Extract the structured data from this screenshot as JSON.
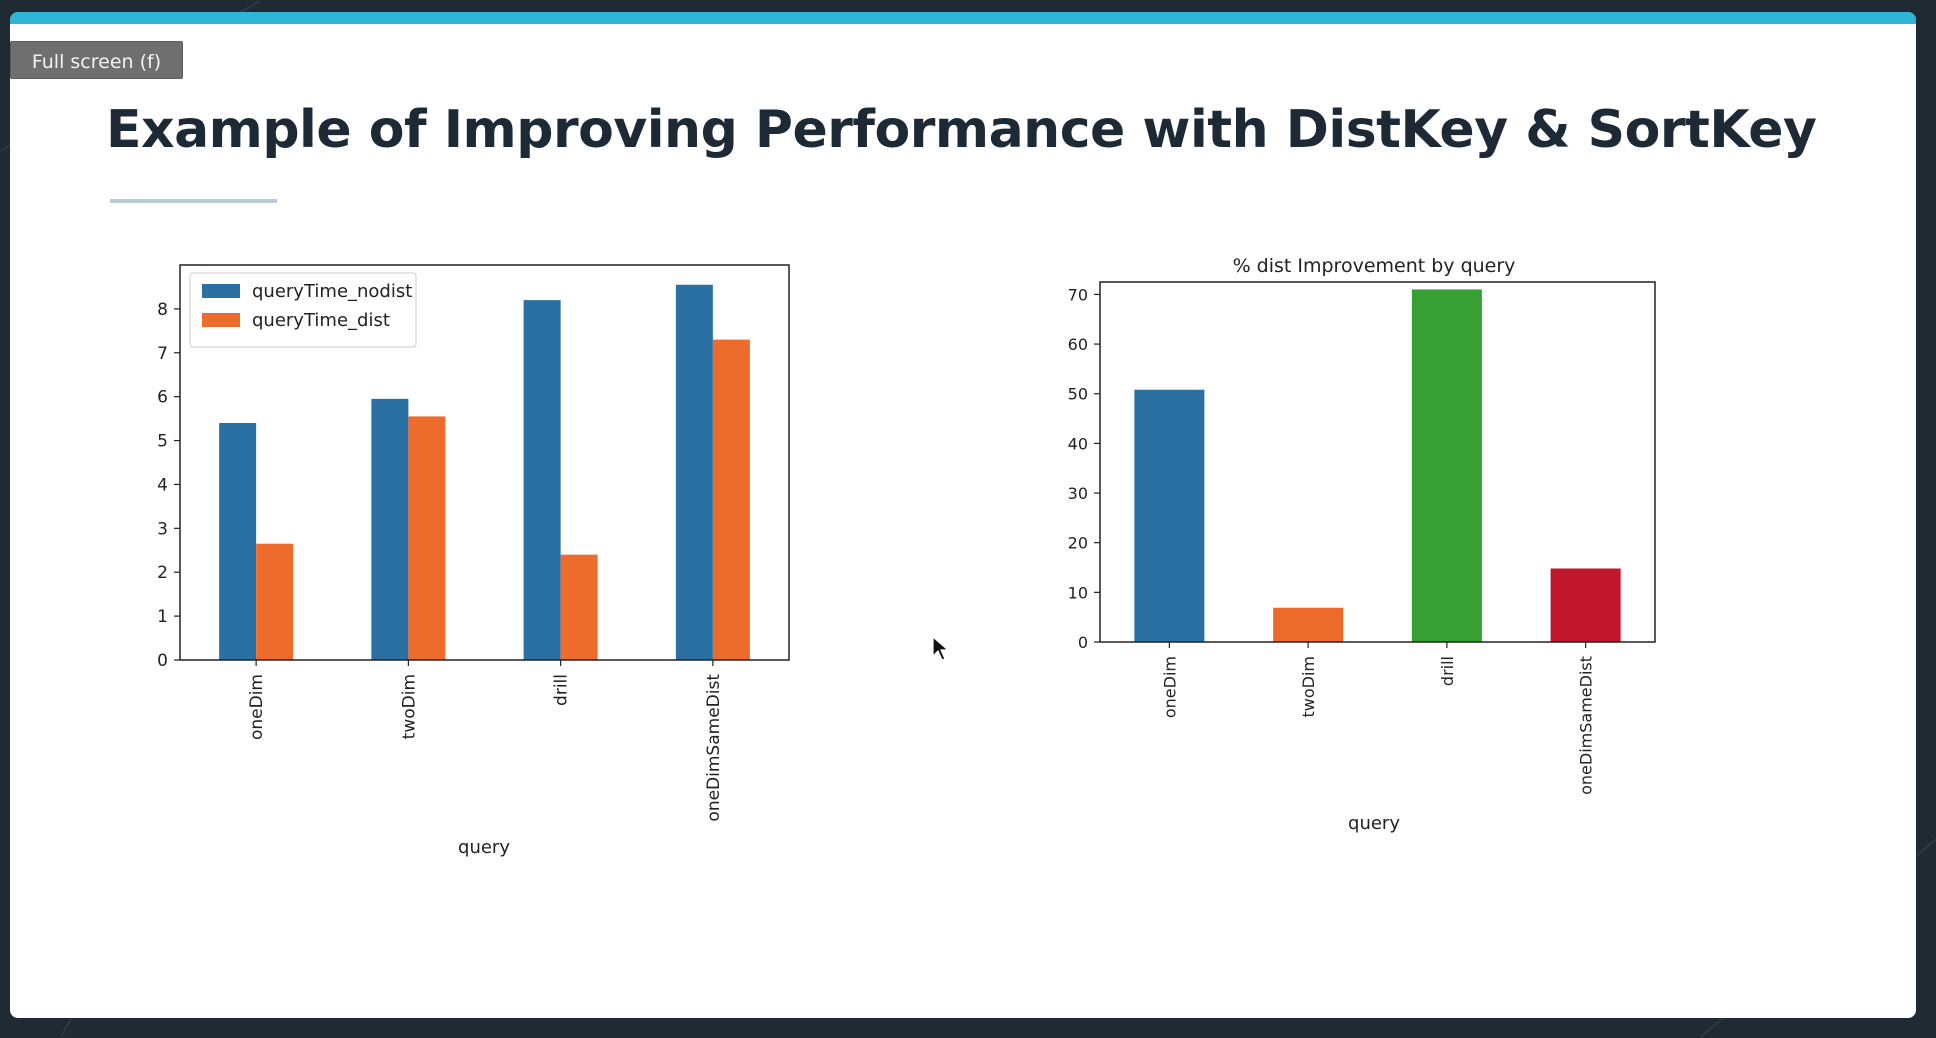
{
  "fullscreen_button": {
    "label": "Full screen (f)"
  },
  "slide": {
    "title": "Example of Improving Performance with DistKey & SortKey",
    "accent_color": "#2fb5d6"
  },
  "chart_data": [
    {
      "type": "bar",
      "title": "",
      "xlabel": "query",
      "ylabel": "",
      "categories": [
        "oneDim",
        "twoDim",
        "drill",
        "oneDimSameDist"
      ],
      "series": [
        {
          "name": "queryTime_nodist",
          "color": "#2a70a3",
          "values": [
            5.4,
            5.95,
            8.2,
            8.55
          ]
        },
        {
          "name": "queryTime_dist",
          "color": "#ee6c2b",
          "values": [
            2.65,
            5.55,
            2.4,
            7.3
          ]
        }
      ],
      "ylim": [
        0,
        9.0
      ],
      "yticks": [
        0,
        1,
        2,
        3,
        4,
        5,
        6,
        7,
        8
      ],
      "legend": "top-left",
      "grid": false
    },
    {
      "type": "bar",
      "title": "% dist Improvement by query",
      "xlabel": "query",
      "ylabel": "",
      "categories": [
        "oneDim",
        "twoDim",
        "drill",
        "oneDimSameDist"
      ],
      "colors": [
        "#2a70a3",
        "#ee6c2b",
        "#36a035",
        "#c0162b"
      ],
      "values": [
        50.8,
        6.9,
        71.0,
        14.8
      ],
      "ylim": [
        0,
        72.5
      ],
      "yticks": [
        0,
        10,
        20,
        30,
        40,
        50,
        60,
        70
      ],
      "grid": false
    }
  ]
}
